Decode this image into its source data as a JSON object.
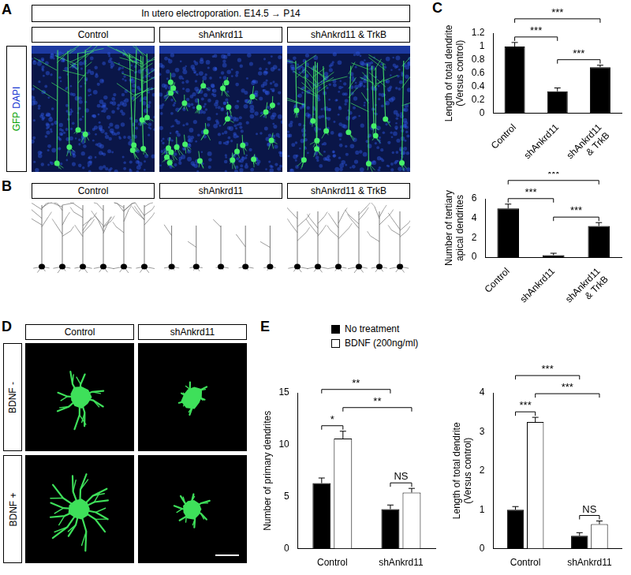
{
  "panels": {
    "A": {
      "letter": "A",
      "header": "In utero electroporation. E14.5 → P14",
      "columns": [
        "Control",
        "shAnkrd11",
        "shAnkrd11 & TrkB"
      ],
      "stain": [
        "GFP",
        "DAPI"
      ]
    },
    "B": {
      "letter": "B",
      "columns": [
        "Control",
        "shAnkrd11",
        "shAnkrd11 & TrkB"
      ]
    },
    "C": {
      "letter": "C"
    },
    "D": {
      "letter": "D",
      "columns": [
        "Control",
        "shAnkrd11"
      ],
      "rows": [
        "BDNF -",
        "BDNF +"
      ]
    },
    "E": {
      "letter": "E"
    }
  },
  "chart_data": [
    {
      "type": "bar",
      "categories": [
        "Control",
        "shAnkrd11",
        "shAnkrd11 & TrkB"
      ],
      "y_label": "Length of total dendrite (Versus control)",
      "values": [
        1.0,
        0.33,
        0.69
      ],
      "errors": [
        0.06,
        0.05,
        0.03
      ],
      "color": "#000000",
      "ylim": [
        0,
        1.2
      ],
      "yticks": [
        0,
        0.2,
        0.4,
        0.6,
        0.8,
        1,
        1.2
      ],
      "grid": false,
      "annotations": [
        {
          "from": 1,
          "to": 2,
          "label": "***"
        },
        {
          "from": 0,
          "to": 1,
          "label": "***"
        },
        {
          "from": 0,
          "to": 2,
          "label": "***"
        }
      ]
    },
    {
      "type": "bar",
      "categories": [
        "Control",
        "shAnkrd11",
        "shAnkrd11 & TrkB"
      ],
      "y_label": "Number of tertiary apical dendrites",
      "values": [
        5.0,
        0.2,
        3.2
      ],
      "errors": [
        0.45,
        0.2,
        0.35
      ],
      "color": "#000000",
      "ylim": [
        0,
        6
      ],
      "yticks": [
        0,
        2,
        4,
        6
      ],
      "grid": false,
      "annotations": [
        {
          "from": 1,
          "to": 2,
          "label": "***"
        },
        {
          "from": 0,
          "to": 1,
          "label": "***"
        },
        {
          "from": 0,
          "to": 2,
          "label": "***"
        }
      ]
    },
    {
      "type": "bar",
      "categories": [
        "Control",
        "shAnkrd11"
      ],
      "y_label": "Number of primary dendrites",
      "series": [
        {
          "name": "No treatment",
          "color": "#000000",
          "values": [
            6.3,
            3.8
          ],
          "errors": [
            0.5,
            0.4
          ]
        },
        {
          "name": "BDNF (200ng/ml)",
          "color": "#ffffff",
          "values": [
            10.6,
            5.4
          ],
          "errors": [
            0.7,
            0.4
          ]
        }
      ],
      "ylim": [
        0,
        15
      ],
      "yticks": [
        0,
        5,
        10,
        15
      ],
      "grid": false,
      "legend": "top",
      "annotations": [
        {
          "from": [
            0,
            0
          ],
          "to": [
            0,
            1
          ],
          "label": "*"
        },
        {
          "from": [
            1,
            0
          ],
          "to": [
            1,
            1
          ],
          "label": "NS"
        },
        {
          "from": [
            0,
            1
          ],
          "to": [
            1,
            1
          ],
          "label": "**"
        },
        {
          "from": [
            0,
            0
          ],
          "to": [
            1,
            0
          ],
          "label": "**"
        }
      ]
    },
    {
      "type": "bar",
      "categories": [
        "Control",
        "shAnkrd11"
      ],
      "y_label": "Length of total dendrite (Versus control)",
      "series": [
        {
          "name": "No treatment",
          "color": "#000000",
          "values": [
            1.0,
            0.33
          ],
          "errors": [
            0.08,
            0.08
          ]
        },
        {
          "name": "BDNF (200ng/ml)",
          "color": "#ffffff",
          "values": [
            3.25,
            0.63
          ],
          "errors": [
            0.12,
            0.08
          ]
        }
      ],
      "ylim": [
        0,
        4
      ],
      "yticks": [
        0,
        1,
        2,
        3,
        4
      ],
      "grid": false,
      "annotations": [
        {
          "from": [
            0,
            0
          ],
          "to": [
            0,
            1
          ],
          "label": "***"
        },
        {
          "from": [
            1,
            0
          ],
          "to": [
            1,
            1
          ],
          "label": "NS"
        },
        {
          "from": [
            0,
            1
          ],
          "to": [
            1,
            1
          ],
          "label": "***"
        },
        {
          "from": [
            0,
            0
          ],
          "to": [
            1,
            0
          ],
          "label": "***"
        }
      ]
    }
  ]
}
